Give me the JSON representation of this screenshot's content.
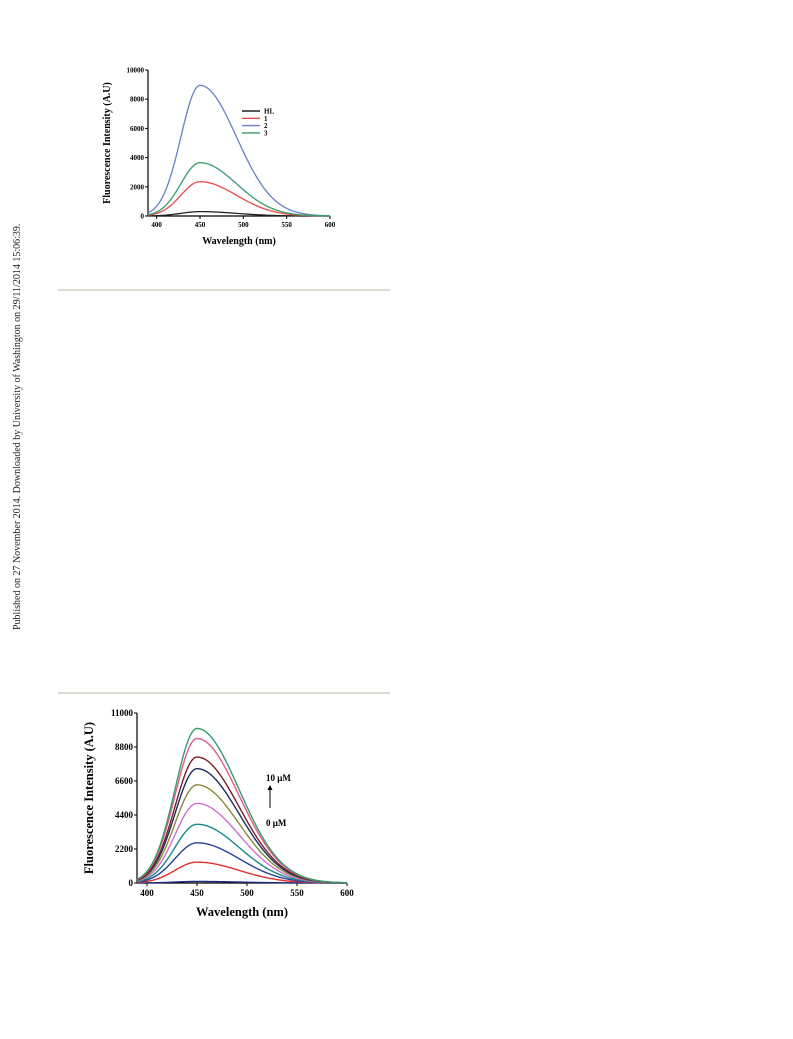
{
  "side_note": "Published on 27 November 2014. Downloaded by University of Washington on 29/11/2014 15:06:39.",
  "chart_data": [
    {
      "type": "line",
      "xlabel": "Wavelength (nm)",
      "ylabel": "Fluorescence Intensity (A.U)",
      "xlim": [
        390,
        600
      ],
      "ylim": [
        0,
        10000
      ],
      "xticks": [
        400,
        450,
        500,
        550,
        600
      ],
      "yticks": [
        0,
        2000,
        4000,
        6000,
        8000,
        10000
      ],
      "legend_position": "top-right",
      "series": [
        {
          "name": "HL",
          "color": "#222222",
          "peak_x": 450,
          "peak_y": 300
        },
        {
          "name": "1",
          "color": "#e84a4a",
          "peak_x": 450,
          "peak_y": 2350
        },
        {
          "name": "2",
          "color": "#6b7fc4",
          "peak_x": 450,
          "peak_y": 8950
        },
        {
          "name": "3",
          "color": "#3a9a6a",
          "peak_x": 450,
          "peak_y": 3650
        }
      ]
    },
    {
      "type": "line",
      "xlabel": "Wavelength (nm)",
      "ylabel": "Fluorescence Intensity (A.U)",
      "xlim": [
        390,
        600
      ],
      "ylim": [
        0,
        11000
      ],
      "xticks": [
        400,
        450,
        500,
        550,
        600
      ],
      "yticks": [
        0,
        2200,
        4400,
        6600,
        8800,
        11000
      ],
      "annotation_top": "10 μM",
      "annotation_bottom": "0 μM",
      "series": [
        {
          "color": "#1c2a7a",
          "peak_x": 450,
          "peak_y": 100
        },
        {
          "color": "#e03030",
          "peak_x": 450,
          "peak_y": 1350
        },
        {
          "color": "#2c3f9a",
          "peak_x": 450,
          "peak_y": 2600
        },
        {
          "color": "#178a8a",
          "peak_x": 450,
          "peak_y": 3800
        },
        {
          "color": "#d070d0",
          "peak_x": 450,
          "peak_y": 5150
        },
        {
          "color": "#8a8a3a",
          "peak_x": 450,
          "peak_y": 6350
        },
        {
          "color": "#1a2f5a",
          "peak_x": 450,
          "peak_y": 7400
        },
        {
          "color": "#7a1f2a",
          "peak_x": 450,
          "peak_y": 8150
        },
        {
          "color": "#e05a8a",
          "peak_x": 450,
          "peak_y": 9350
        },
        {
          "color": "#3a9a6a",
          "peak_x": 450,
          "peak_y": 10000
        }
      ]
    }
  ]
}
